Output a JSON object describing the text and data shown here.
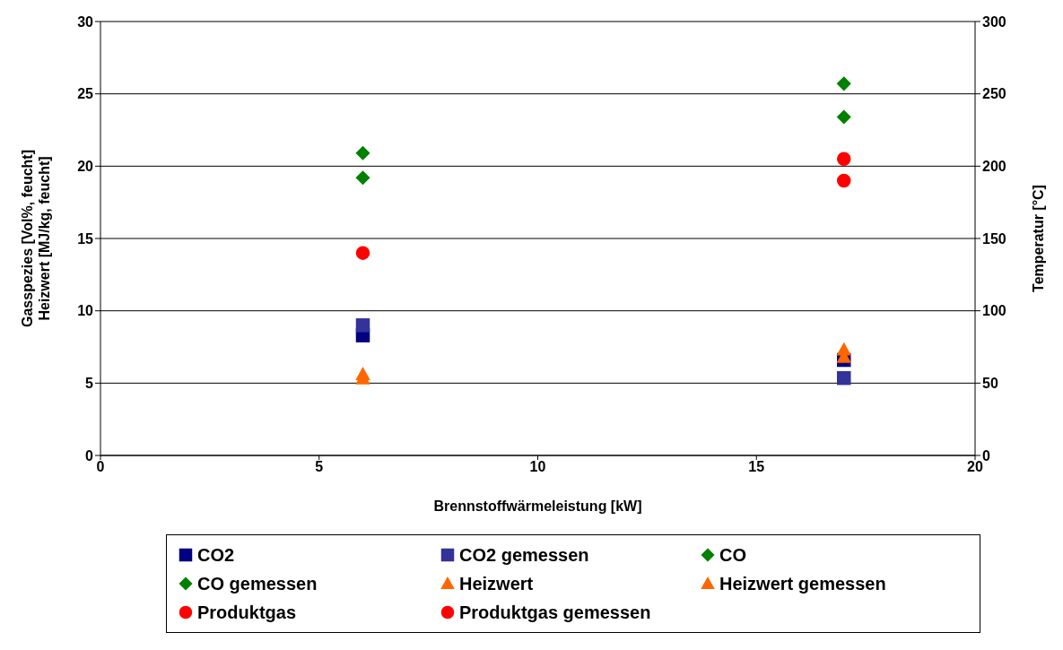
{
  "chart_data": {
    "type": "scatter",
    "xlabel": "Brennstoffwärmeleistung  [kW]",
    "ylabel": "Gasspezies [Vol%, feucht]\nHeizwert [MJ/kg, feucht]",
    "y2label": "Temperatur [°C]",
    "x": [
      6,
      17
    ],
    "xlim": [
      0,
      20
    ],
    "xticks": [
      0,
      5,
      10,
      15,
      20
    ],
    "ylim": [
      0,
      30
    ],
    "yticks": [
      0,
      5,
      10,
      15,
      20,
      25,
      30
    ],
    "y2lim": [
      0,
      300
    ],
    "y2ticks": [
      0,
      50,
      100,
      150,
      200,
      250,
      300
    ],
    "grid": "y",
    "legend": "bottom",
    "series": [
      {
        "name": "CO2",
        "color": "#000080",
        "marker": "square",
        "values": [
          8.3,
          6.6
        ]
      },
      {
        "name": "CO2 gemessen",
        "color": "#333399",
        "marker": "square",
        "values": [
          9.0,
          5.35
        ]
      },
      {
        "name": "CO",
        "color": "#008000",
        "marker": "diamond",
        "values": [
          20.9,
          23.4
        ]
      },
      {
        "name": "CO gemessen",
        "color": "#008000",
        "marker": "diamond",
        "values": [
          19.2,
          25.7
        ]
      },
      {
        "name": "Heizwert",
        "color": "#ff6600",
        "marker": "triangle",
        "values": [
          5.6,
          7.3
        ]
      },
      {
        "name": "Heizwert gemessen",
        "color": "#ff6600",
        "marker": "triangle",
        "values": [
          5.3,
          6.8
        ]
      },
      {
        "name": "Produktgas",
        "color": "#ff0000",
        "marker": "circle",
        "axis": "y2",
        "values": [
          null,
          190
        ]
      },
      {
        "name": "Produktgas gemessen",
        "color": "#ff0000",
        "marker": "circle",
        "axis": "y2",
        "values": [
          140,
          205
        ]
      }
    ]
  }
}
